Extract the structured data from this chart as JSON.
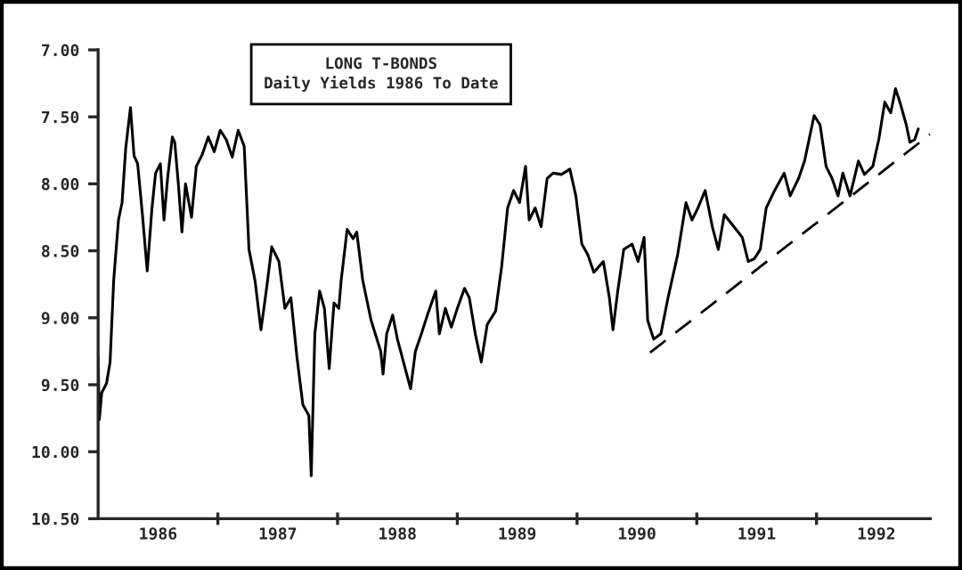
{
  "chart_data": {
    "type": "line",
    "title": "LONG T-BONDS\nDaily Yields 1986 To Date",
    "xlim": [
      1986,
      1992.95
    ],
    "ylim": [
      10.5,
      7.0
    ],
    "xticks": [
      {
        "value": 1987,
        "label": null
      },
      {
        "value": 1988,
        "label": null
      },
      {
        "value": 1989,
        "label": null
      },
      {
        "value": 1990,
        "label": null
      },
      {
        "value": 1991,
        "label": null
      },
      {
        "value": 1992,
        "label": null
      },
      {
        "value": 1986.5,
        "label": "1986"
      },
      {
        "value": 1987.5,
        "label": "1987"
      },
      {
        "value": 1988.5,
        "label": "1988"
      },
      {
        "value": 1989.5,
        "label": "1989"
      },
      {
        "value": 1990.5,
        "label": "1990"
      },
      {
        "value": 1991.5,
        "label": "1991"
      },
      {
        "value": 1992.5,
        "label": "1992"
      }
    ],
    "yticks": [
      {
        "value": 7,
        "label": "7.00"
      },
      {
        "value": 7.5,
        "label": "7.50"
      },
      {
        "value": 8,
        "label": "8.00"
      },
      {
        "value": 8.5,
        "label": "8.50"
      },
      {
        "value": 9,
        "label": "9.00"
      },
      {
        "value": 9.5,
        "label": "9.50"
      },
      {
        "value": 10,
        "label": "10.00"
      },
      {
        "value": 10.5,
        "label": "10.50"
      }
    ],
    "grid": false,
    "legend": false,
    "series": [
      {
        "color": "#000000",
        "line_style": "solid",
        "x": [
          1986.0,
          1986.01,
          1986.03,
          1986.07,
          1986.1,
          1986.13,
          1986.17,
          1986.2,
          1986.23,
          1986.27,
          1986.3,
          1986.33,
          1986.37,
          1986.41,
          1986.45,
          1986.48,
          1986.52,
          1986.55,
          1986.58,
          1986.62,
          1986.64,
          1986.67,
          1986.7,
          1986.73,
          1986.78,
          1986.82,
          1986.87,
          1986.92,
          1986.97,
          1987.02,
          1987.07,
          1987.12,
          1987.17,
          1987.22,
          1987.26,
          1987.31,
          1987.36,
          1987.41,
          1987.45,
          1987.51,
          1987.56,
          1987.61,
          1987.66,
          1987.71,
          1987.76,
          1987.78,
          1987.81,
          1987.85,
          1987.89,
          1987.93,
          1987.97,
          1988.01,
          1988.03,
          1988.08,
          1988.13,
          1988.16,
          1988.21,
          1988.28,
          1988.36,
          1988.38,
          1988.41,
          1988.46,
          1988.5,
          1988.55,
          1988.61,
          1988.65,
          1988.7,
          1988.75,
          1988.82,
          1988.85,
          1988.9,
          1988.95,
          1989.0,
          1989.06,
          1989.1,
          1989.15,
          1989.2,
          1989.25,
          1989.32,
          1989.37,
          1989.42,
          1989.47,
          1989.52,
          1989.57,
          1989.6,
          1989.65,
          1989.7,
          1989.75,
          1989.8,
          1989.87,
          1989.94,
          1989.99,
          1990.04,
          1990.09,
          1990.14,
          1990.22,
          1990.27,
          1990.3,
          1990.34,
          1990.39,
          1990.46,
          1990.51,
          1990.56,
          1990.59,
          1990.64,
          1990.7,
          1990.76,
          1990.84,
          1990.91,
          1990.96,
          1991.01,
          1991.07,
          1991.13,
          1991.18,
          1991.23,
          1991.31,
          1991.38,
          1991.43,
          1991.48,
          1991.53,
          1991.58,
          1991.65,
          1991.73,
          1991.78,
          1991.85,
          1991.9,
          1991.98,
          1992.03,
          1992.08,
          1992.13,
          1992.18,
          1992.22,
          1992.28,
          1992.35,
          1992.4,
          1992.47,
          1992.52,
          1992.57,
          1992.62,
          1992.66,
          1992.7,
          1992.75,
          1992.78,
          1992.82,
          1992.85
        ],
        "values": [
          9.29,
          9.76,
          9.56,
          9.49,
          9.33,
          8.72,
          8.27,
          8.14,
          7.74,
          7.43,
          7.79,
          7.85,
          8.23,
          8.65,
          8.18,
          7.92,
          7.85,
          8.27,
          7.96,
          7.65,
          7.69,
          8.0,
          8.36,
          8.0,
          8.25,
          7.87,
          7.78,
          7.65,
          7.76,
          7.6,
          7.67,
          7.8,
          7.6,
          7.72,
          8.49,
          8.72,
          9.09,
          8.76,
          8.47,
          8.58,
          8.93,
          8.85,
          9.29,
          9.65,
          9.73,
          10.18,
          9.12,
          8.8,
          8.93,
          9.38,
          8.89,
          8.93,
          8.72,
          8.34,
          8.41,
          8.36,
          8.72,
          9.02,
          9.25,
          9.42,
          9.12,
          8.98,
          9.16,
          9.33,
          9.53,
          9.25,
          9.12,
          8.98,
          8.8,
          9.12,
          8.93,
          9.07,
          8.93,
          8.78,
          8.85,
          9.12,
          9.33,
          9.05,
          8.95,
          8.62,
          8.18,
          8.05,
          8.14,
          7.87,
          8.27,
          8.18,
          8.32,
          7.96,
          7.92,
          7.93,
          7.89,
          8.09,
          8.45,
          8.53,
          8.66,
          8.58,
          8.85,
          9.09,
          8.8,
          8.49,
          8.45,
          8.58,
          8.4,
          9.02,
          9.16,
          9.12,
          8.85,
          8.53,
          8.14,
          8.27,
          8.18,
          8.05,
          8.32,
          8.49,
          8.23,
          8.32,
          8.4,
          8.58,
          8.56,
          8.49,
          8.18,
          8.05,
          7.92,
          8.09,
          7.96,
          7.83,
          7.49,
          7.56,
          7.87,
          7.96,
          8.09,
          7.92,
          8.09,
          7.83,
          7.93,
          7.87,
          7.67,
          7.39,
          7.47,
          7.29,
          7.4,
          7.56,
          7.69,
          7.67,
          7.59
        ]
      },
      {
        "color": "#000000",
        "line_style": "dashed",
        "x": [
          1990.61,
          1992.95
        ],
        "values": [
          9.26,
          7.63
        ]
      }
    ]
  }
}
